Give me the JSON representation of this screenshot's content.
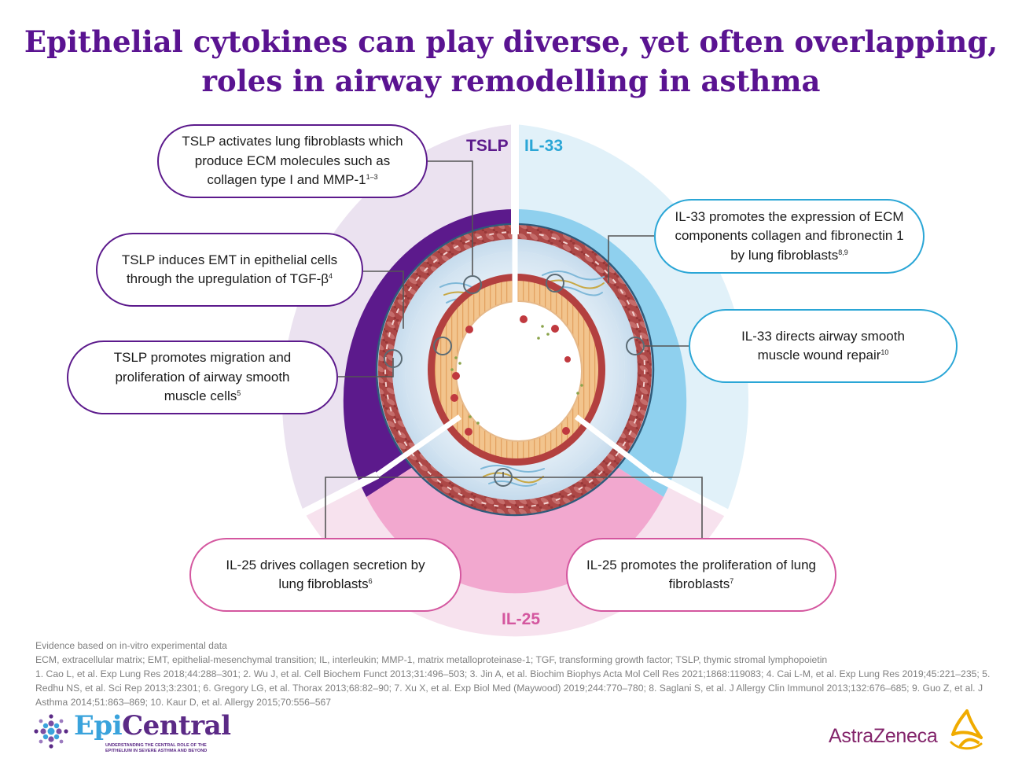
{
  "title": {
    "line1": "Epithelial cytokines can play diverse, yet often overlapping,",
    "line2": "roles in airway remodelling in asthma"
  },
  "segments": {
    "tslp": {
      "label": "TSLP",
      "color": "#5c1a8c",
      "light": "#ebe2f0"
    },
    "il33": {
      "label": "IL-33",
      "color": "#2aa6d6",
      "light": "#e1f1f9"
    },
    "il25": {
      "label": "IL-25",
      "color": "#e9a8cc",
      "light": "#f7e2ee"
    }
  },
  "bubbles": {
    "tslp1": {
      "text": "TSLP activates lung fibroblasts which produce ECM molecules such as collagen type I and MMP-1",
      "ref": "1–3"
    },
    "tslp2": {
      "text": "TSLP induces EMT in epithelial cells through the upregulation of TGF-β",
      "ref": "4"
    },
    "tslp3": {
      "text": "TSLP promotes migration and proliferation of airway smooth muscle cells",
      "ref": "5"
    },
    "il33a": {
      "text": "IL-33 promotes the expression of ECM components collagen and fibronectin 1 by lung fibroblasts",
      "ref": "8,9"
    },
    "il33b": {
      "text": "IL-33 directs airway smooth muscle wound repair",
      "ref": "10"
    },
    "il25a": {
      "text": "IL-25 drives collagen secretion by lung fibroblasts",
      "ref": "6"
    },
    "il25b": {
      "text": "IL-25 promotes the proliferation of lung fibroblasts",
      "ref": "7"
    }
  },
  "footer": {
    "note": "Evidence based on in-vitro experimental data",
    "abbreviations": "ECM, extracellular matrix; EMT, epithelial-mesenchymal transition; IL, interleukin; MMP-1, matrix metalloproteinase-1; TGF, transforming growth factor; TSLP, thymic stromal lymphopoietin",
    "references": "1. Cao L, et al. Exp Lung Res 2018;44:288–301; 2. Wu J, et al. Cell Biochem Funct 2013;31:496–503; 3. Jin A, et al. Biochim Biophys Acta Mol Cell Res 2021;1868:119083; 4. Cai L-M, et al. Exp Lung Res 2019;45:221–235; 5. Redhu NS, et al. Sci Rep 2013;3:2301; 6. Gregory LG, et al. Thorax 2013;68:82–90; 7. Xu X, et al. Exp Biol Med (Maywood) 2019;244:770–780; 8. Saglani S, et al. J Allergy Clin Immunol 2013;132:676–685; 9. Guo Z, et al. J Asthma 2014;51:863–869; 10. Kaur D, et al. Allergy 2015;70:556–567"
  },
  "logos": {
    "epicentral": {
      "word_a": "Epi",
      "word_b": "Central",
      "tagline_1": "UNDERSTANDING THE CENTRAL ROLE OF THE",
      "tagline_2": "EPITHELIUM IN SEVERE ASTHMA AND BEYOND"
    },
    "astrazeneca": {
      "word": "AstraZeneca",
      "color": "#83246b",
      "mark_color": "#f0ab00"
    }
  }
}
